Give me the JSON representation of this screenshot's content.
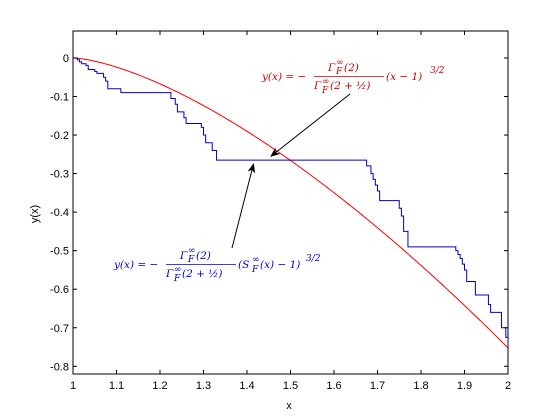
{
  "chart_data": {
    "type": "line",
    "title": "",
    "xlabel": "x",
    "ylabel": "y(x)",
    "xlim": [
      1,
      2
    ],
    "ylim": [
      -0.82,
      0.07
    ],
    "xticks": [
      1,
      1.1,
      1.2,
      1.3,
      1.4,
      1.5,
      1.6,
      1.7,
      1.8,
      1.9,
      2
    ],
    "xtick_labels": [
      "1",
      "1.1",
      "1.2",
      "1.3",
      "1.4",
      "1.5",
      "1.6",
      "1.7",
      "1.8",
      "1.9",
      "2"
    ],
    "yticks": [
      0,
      -0.1,
      -0.2,
      -0.3,
      -0.4,
      -0.5,
      -0.6,
      -0.7,
      -0.8
    ],
    "ytick_labels": [
      "0",
      "-0.1",
      "-0.2",
      "-0.3",
      "-0.4",
      "-0.5",
      "-0.6",
      "-0.7",
      "-0.8"
    ],
    "grid": false,
    "series": [
      {
        "color": "#ff0000",
        "formula": "y = -(2/(3*sqrt(pi)/2)) * (x-1)^(3/2)",
        "x": [
          1.0,
          1.05,
          1.1,
          1.15,
          1.2,
          1.25,
          1.3,
          1.35,
          1.4,
          1.45,
          1.5,
          1.55,
          1.6,
          1.65,
          1.7,
          1.75,
          1.8,
          1.85,
          1.9,
          1.95,
          2.0
        ],
        "y": [
          0.0,
          -0.0084,
          -0.0238,
          -0.0437,
          -0.0673,
          -0.094,
          -0.1236,
          -0.1557,
          -0.1903,
          -0.227,
          -0.266,
          -0.3068,
          -0.3497,
          -0.3943,
          -0.4406,
          -0.4887,
          -0.5383,
          -0.5893,
          -0.6418,
          -0.6959,
          -0.7523
        ]
      },
      {
        "color": "#0000cc",
        "step": true,
        "x": [
          1.0,
          1.01,
          1.015,
          1.02,
          1.03,
          1.035,
          1.05,
          1.055,
          1.07,
          1.075,
          1.08,
          1.11,
          1.22,
          1.225,
          1.235,
          1.24,
          1.255,
          1.26,
          1.29,
          1.295,
          1.3,
          1.305,
          1.32,
          1.33,
          1.665,
          1.675,
          1.685,
          1.69,
          1.695,
          1.7,
          1.705,
          1.74,
          1.75,
          1.755,
          1.76,
          1.77,
          1.875,
          1.88,
          1.885,
          1.89,
          1.895,
          1.9,
          1.905,
          1.92,
          1.925,
          1.945,
          1.955,
          1.96,
          1.975,
          1.985,
          1.99,
          1.995,
          2.0
        ],
        "y": [
          0.0,
          -0.005,
          -0.01,
          -0.015,
          -0.02,
          -0.03,
          -0.035,
          -0.04,
          -0.05,
          -0.06,
          -0.08,
          -0.09,
          -0.09,
          -0.105,
          -0.12,
          -0.14,
          -0.155,
          -0.17,
          -0.17,
          -0.18,
          -0.2,
          -0.22,
          -0.24,
          -0.265,
          -0.265,
          -0.28,
          -0.3,
          -0.315,
          -0.33,
          -0.345,
          -0.37,
          -0.37,
          -0.39,
          -0.41,
          -0.45,
          -0.49,
          -0.49,
          -0.5,
          -0.51,
          -0.52,
          -0.535,
          -0.55,
          -0.58,
          -0.58,
          -0.615,
          -0.615,
          -0.64,
          -0.66,
          -0.66,
          -0.7,
          -0.7,
          -0.725,
          -0.75
        ]
      }
    ],
    "annotations": [
      {
        "color": "#cc0000",
        "lhs": "y(x) = −",
        "num": "Γ",
        "num_sup": "∞",
        "num_sub": "F",
        "num_arg": "(2)",
        "den": "Γ",
        "den_sup": "∞",
        "den_sub": "F",
        "den_arg": "(2 + ½)",
        "rhs": "(x − 1)",
        "rhs_exp": "3/2",
        "arrow_to": [
          1.455,
          -0.255
        ]
      },
      {
        "color": "#0000cc",
        "lhs": "y(x) = −",
        "num": "Γ",
        "num_sup": "∞",
        "num_sub": "F",
        "num_arg": "(2)",
        "den": "Γ",
        "den_sup": "∞",
        "den_sub": "F",
        "den_arg": "(2 + ½)",
        "rhs_pre": "(S",
        "rhs_sup": "∞",
        "rhs_sub": "F",
        "rhs": "(x) − 1)",
        "rhs_exp": "3/2",
        "arrow_to": [
          1.415,
          -0.275
        ]
      }
    ]
  }
}
